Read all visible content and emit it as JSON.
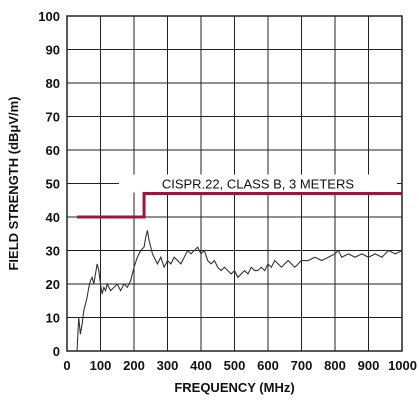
{
  "chart_data": {
    "type": "line",
    "xlabel": "FREQUENCY (MHz)",
    "ylabel": "FIELD STRENGTH (dBμV/m)",
    "xlim": [
      0,
      1000
    ],
    "ylim": [
      0,
      100
    ],
    "x_ticks": [
      "0",
      "100",
      "200",
      "300",
      "400",
      "500",
      "600",
      "700",
      "800",
      "900",
      "1000"
    ],
    "y_ticks": [
      "0",
      "10",
      "20",
      "30",
      "40",
      "50",
      "60",
      "70",
      "80",
      "90",
      "100"
    ],
    "grid": true,
    "annotation": "CISPR.22, CLASS B, 3 METERS",
    "colors": {
      "limit": "#a0143c",
      "measurement": "#333333",
      "grid": "#222222"
    },
    "series": [
      {
        "role": "limit",
        "x": [
          30,
          230,
          230,
          1000
        ],
        "y": [
          40,
          40,
          47,
          47
        ]
      },
      {
        "role": "measurement",
        "x": [
          30,
          35,
          40,
          45,
          50,
          55,
          60,
          65,
          70,
          75,
          80,
          85,
          90,
          95,
          100,
          105,
          110,
          115,
          120,
          130,
          140,
          150,
          160,
          170,
          180,
          190,
          200,
          210,
          220,
          230,
          235,
          240,
          245,
          250,
          255,
          260,
          270,
          280,
          290,
          300,
          310,
          320,
          330,
          340,
          350,
          360,
          370,
          380,
          390,
          400,
          410,
          420,
          430,
          440,
          450,
          460,
          470,
          480,
          490,
          500,
          510,
          520,
          530,
          540,
          550,
          560,
          570,
          580,
          590,
          600,
          610,
          620,
          630,
          640,
          650,
          660,
          670,
          680,
          690,
          700,
          720,
          740,
          760,
          780,
          800,
          810,
          820,
          840,
          860,
          880,
          900,
          920,
          940,
          960,
          980,
          1000
        ],
        "y": [
          0,
          10,
          5,
          8,
          12,
          14,
          16,
          19,
          21,
          22,
          20,
          23,
          26,
          24,
          20,
          17,
          19,
          18,
          20,
          18,
          19,
          20,
          18,
          20,
          19,
          21,
          25,
          28,
          30,
          31,
          34,
          36,
          33,
          31,
          29,
          28,
          26,
          28,
          25,
          27,
          26,
          28,
          27,
          26,
          28,
          30,
          29,
          30,
          31,
          29,
          30,
          27,
          26,
          27,
          25,
          24,
          25,
          24,
          23,
          24,
          22,
          23,
          24,
          23,
          25,
          24,
          24,
          25,
          24,
          26,
          25,
          27,
          26,
          25,
          26,
          27,
          26,
          25,
          26,
          27,
          27,
          28,
          27,
          28,
          29,
          30,
          28,
          29,
          28,
          29,
          28,
          29,
          28,
          30,
          29,
          30
        ]
      }
    ]
  }
}
